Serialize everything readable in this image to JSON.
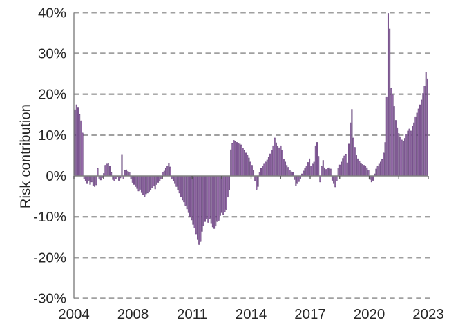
{
  "chart_data": {
    "type": "bar",
    "title": "",
    "xlabel": "",
    "ylabel": "Risk contribution",
    "ylim": [
      -30,
      40
    ],
    "y_tick_values": [
      40,
      30,
      20,
      10,
      0,
      -10,
      -20,
      -30
    ],
    "y_tick_labels": [
      "40%",
      "30%",
      "20%",
      "10%",
      "0%",
      "-10%",
      "-20%",
      "-30%"
    ],
    "x_tick_labels": [
      "2004",
      "2008",
      "2011",
      "2014",
      "2017",
      "2020",
      "2023"
    ],
    "grid": "horizontal-dashed",
    "legend_position": "none",
    "series_name": "Risk contribution",
    "x_start": "2004-01",
    "x_frequency": "monthly",
    "values": [
      16.2,
      17.4,
      16.8,
      15.0,
      13.5,
      10.5,
      -0.7,
      -1.3,
      -1.9,
      -1.1,
      -2.1,
      -1.5,
      -2.3,
      -2.6,
      -2.2,
      1.8,
      -0.6,
      -1.0,
      -0.4,
      0.6,
      2.6,
      2.9,
      3.1,
      2.4,
      0.8,
      -0.9,
      -1.2,
      -0.7,
      -0.3,
      -1.1,
      -0.5,
      5.1,
      -0.6,
      1.3,
      1.5,
      1.1,
      0.9,
      -0.8,
      -1.6,
      -2.1,
      -2.6,
      -3.1,
      -3.7,
      -3.3,
      -4.1,
      -4.6,
      -5.0,
      -4.4,
      -4.2,
      -3.8,
      -3.4,
      -2.9,
      -2.5,
      -3.2,
      -2.1,
      -1.6,
      -1.2,
      -0.8,
      0.9,
      1.2,
      1.8,
      2.4,
      3.1,
      2.2,
      -0.6,
      -1.2,
      -1.9,
      -2.6,
      -3.4,
      -4.2,
      -5.1,
      -5.9,
      -6.4,
      -7.2,
      -8.1,
      -9.0,
      -9.9,
      -10.8,
      -11.9,
      -12.8,
      -14.2,
      -15.6,
      -16.8,
      -16.1,
      -13.6,
      -12.2,
      -11.2,
      -10.6,
      -11.4,
      -10.4,
      -11.7,
      -12.5,
      -12.9,
      -12.3,
      -11.2,
      -10.9,
      -9.7,
      -9.0,
      -9.4,
      -8.8,
      -8.2,
      -5.2,
      -3.4,
      6.4,
      7.9,
      8.7,
      8.4,
      8.2,
      8.0,
      7.8,
      7.6,
      6.8,
      6.2,
      5.6,
      5.0,
      4.4,
      3.4,
      2.6,
      1.4,
      -1.2,
      -3.3,
      -2.6,
      0.9,
      1.8,
      2.4,
      2.9,
      3.4,
      3.9,
      4.5,
      5.4,
      6.3,
      7.4,
      9.3,
      8.1,
      7.3,
      6.9,
      7.4,
      6.3,
      4.1,
      3.4,
      2.6,
      2.1,
      1.4,
      1.0,
      0.9,
      -0.9,
      -2.4,
      -1.9,
      -1.4,
      -0.6,
      0.5,
      1.2,
      1.8,
      2.4,
      3.3,
      4.2,
      2.4,
      2.9,
      3.4,
      7.4,
      8.2,
      4.8,
      -1.5,
      2.3,
      3.8,
      2.0,
      1.6,
      1.9,
      2.0,
      1.7,
      -1.1,
      -1.9,
      -2.7,
      -1.3,
      1.9,
      2.7,
      3.4,
      4.3,
      4.9,
      5.2,
      3.2,
      7.8,
      13.0,
      16.3,
      9.3,
      7.0,
      5.0,
      4.2,
      3.6,
      3.1,
      2.8,
      2.6,
      2.3,
      2.0,
      1.4,
      -0.9,
      -1.5,
      -1.1,
      0.5,
      1.7,
      2.3,
      2.9,
      3.4,
      4.0,
      5.6,
      8.2,
      19.4,
      39.8,
      36.0,
      21.4,
      19.8,
      17.0,
      13.6,
      11.8,
      10.4,
      9.6,
      8.8,
      8.4,
      9.2,
      10.2,
      11.0,
      11.5,
      11.0,
      12.2,
      13.0,
      14.5,
      15.4,
      16.4,
      17.4,
      18.6,
      20.2,
      22.0,
      25.4,
      23.8
    ],
    "colors": {
      "bar_fill": "#9c72af",
      "bar_edge": "#5d3a73",
      "gridline": "#a0a0a0",
      "axis_line": "#808080",
      "tick_mark": "#595959",
      "text": "#262626"
    }
  }
}
